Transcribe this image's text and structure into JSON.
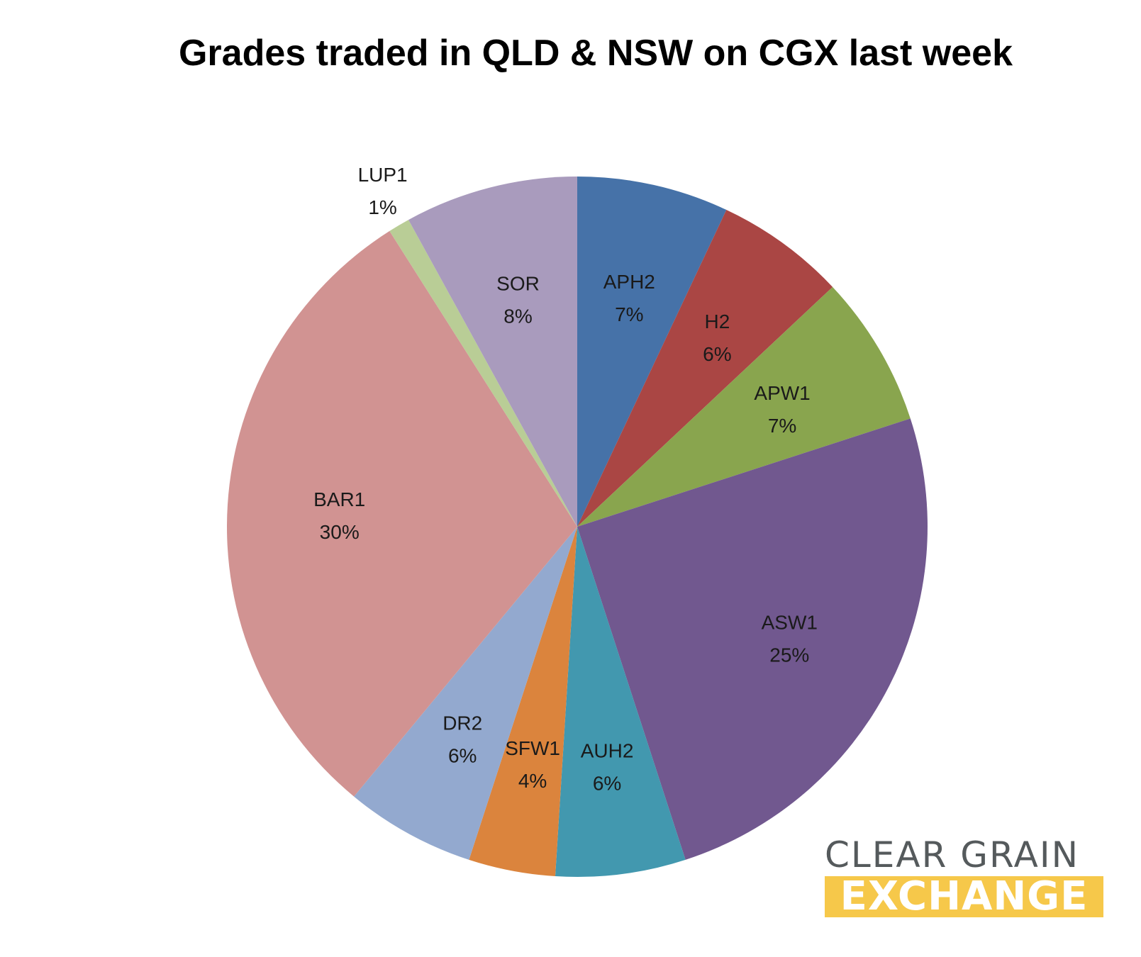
{
  "chart_data": {
    "type": "pie",
    "title": "Grades traded in QLD & NSW on CGX last week",
    "slices": [
      {
        "label": "APH2",
        "value": 7,
        "display": "7%",
        "color": "#4672a8"
      },
      {
        "label": "H2",
        "value": 6,
        "display": "6%",
        "color": "#aa4644"
      },
      {
        "label": "APW1",
        "value": 7,
        "display": "7%",
        "color": "#89a54e"
      },
      {
        "label": "ASW1",
        "value": 25,
        "display": "25%",
        "color": "#71588f"
      },
      {
        "label": "AUH2",
        "value": 6,
        "display": "6%",
        "color": "#4298af"
      },
      {
        "label": "SFW1",
        "value": 4,
        "display": "4%",
        "color": "#db843d"
      },
      {
        "label": "DR2",
        "value": 6,
        "display": "6%",
        "color": "#93a9cf"
      },
      {
        "label": "BAR1",
        "value": 30,
        "display": "30%",
        "color": "#d19392"
      },
      {
        "label": "LUP1",
        "value": 1,
        "display": "1%",
        "color": "#b9cd96"
      },
      {
        "label": "SOR",
        "value": 8,
        "display": "8%",
        "color": "#a99bbd"
      }
    ]
  },
  "logo": {
    "line1": "CLEAR GRAIN",
    "line2": "EXCHANGE",
    "text_color": "#555a5c",
    "band_color": "#f6c84a"
  }
}
